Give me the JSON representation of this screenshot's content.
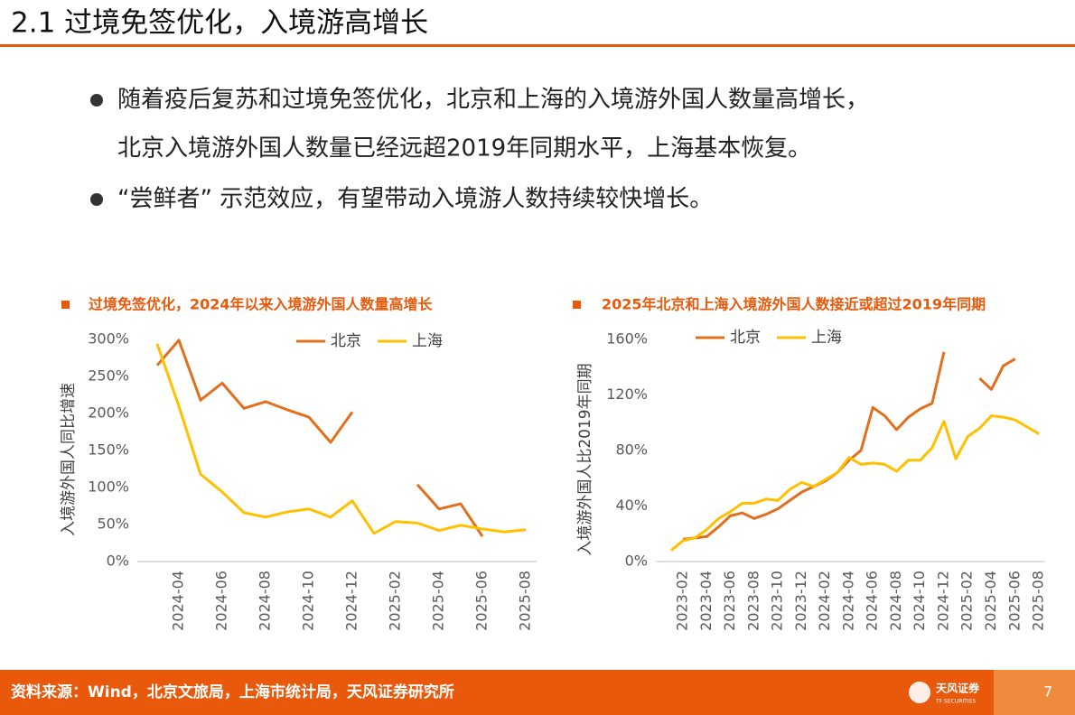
{
  "header": {
    "title": "2.1 过境免签优化，入境游高增长"
  },
  "bullets": [
    "随着疫后复苏和过境免签优化，北京和上海的入境游外国人数量高增长，",
    "北京入境游外国人数量已经远超2019年同期水平，上海基本恢复。",
    "“尝鲜者” 示范效应，有望带动入境游人数持续较快增长。"
  ],
  "chart_data": [
    {
      "type": "line",
      "title": "过境免签优化，2024年以来入境游外国人数量高增长",
      "y_label": "入境游外国人同比增速",
      "categories": [
        null,
        "2024-04",
        null,
        "2024-06",
        null,
        "2024-08",
        null,
        "2024-10",
        null,
        "2024-12",
        null,
        "2025-02",
        null,
        "2025-04",
        null,
        "2025-06",
        null,
        "2025-08"
      ],
      "series": [
        {
          "name": "北京",
          "color": "#E0701E",
          "values": [
            265,
            299,
            218,
            241,
            207,
            216,
            205,
            195,
            161,
            202,
            null,
            null,
            104,
            71,
            78,
            34,
            null,
            null
          ]
        },
        {
          "name": "上海",
          "color": "#FFC000",
          "values": [
            294,
            210,
            118,
            94,
            66,
            60,
            67,
            71,
            60,
            82,
            38,
            54,
            52,
            42,
            49,
            44,
            40,
            43
          ]
        }
      ],
      "ylim": [
        0,
        300
      ],
      "yticks": [
        {
          "value": 0,
          "label": "0%"
        },
        {
          "value": 50,
          "label": "50%"
        },
        {
          "value": 100,
          "label": "100%"
        },
        {
          "value": 150,
          "label": "150%"
        },
        {
          "value": 200,
          "label": "200%"
        },
        {
          "value": 250,
          "label": "250%"
        },
        {
          "value": 300,
          "label": "300%"
        }
      ],
      "grid": false,
      "legend": "top"
    },
    {
      "type": "line",
      "title": "2025年北京和上海入境游外国人数接近或超过2019年同期",
      "y_label": "入境游外国人比2019年同期",
      "categories": [
        null,
        "2023-02",
        null,
        "2023-04",
        null,
        "2023-06",
        null,
        "2023-08",
        null,
        "2023-10",
        null,
        "2023-12",
        null,
        "2024-02",
        null,
        "2024-04",
        null,
        "2024-06",
        null,
        "2024-08",
        null,
        "2024-10",
        null,
        "2024-12",
        null,
        "2025-02",
        null,
        "2025-04",
        null,
        "2025-06",
        null,
        "2025-08"
      ],
      "series": [
        {
          "name": "北京",
          "color": "#E0701E",
          "values": [
            null,
            16,
            17,
            18,
            25,
            33,
            35,
            31,
            34,
            38,
            44,
            50,
            54,
            58,
            64,
            73,
            80,
            111,
            105,
            95,
            104,
            110,
            114,
            151,
            null,
            null,
            132,
            124,
            141,
            146,
            null,
            null
          ]
        },
        {
          "name": "上海",
          "color": "#FFC000",
          "values": [
            8,
            15,
            17,
            23,
            31,
            36,
            42,
            42,
            45,
            44,
            52,
            57,
            54,
            59,
            64,
            75,
            70,
            71,
            70,
            65,
            73,
            73,
            82,
            101,
            74,
            90,
            96,
            105,
            104,
            102,
            97,
            92
          ]
        }
      ],
      "ylim": [
        0,
        160
      ],
      "yticks": [
        {
          "value": 0,
          "label": "0%"
        },
        {
          "value": 40,
          "label": "40%"
        },
        {
          "value": 80,
          "label": "80%"
        },
        {
          "value": 120,
          "label": "120%"
        },
        {
          "value": 160,
          "label": "160%"
        }
      ],
      "grid": false,
      "legend": "top"
    }
  ],
  "footer": {
    "source": "资料来源：Wind，北京文旅局，上海市统计局，天风证券研究所",
    "logo": "天风证券",
    "logo_sub": "TF SECURITIES",
    "page": 7
  }
}
